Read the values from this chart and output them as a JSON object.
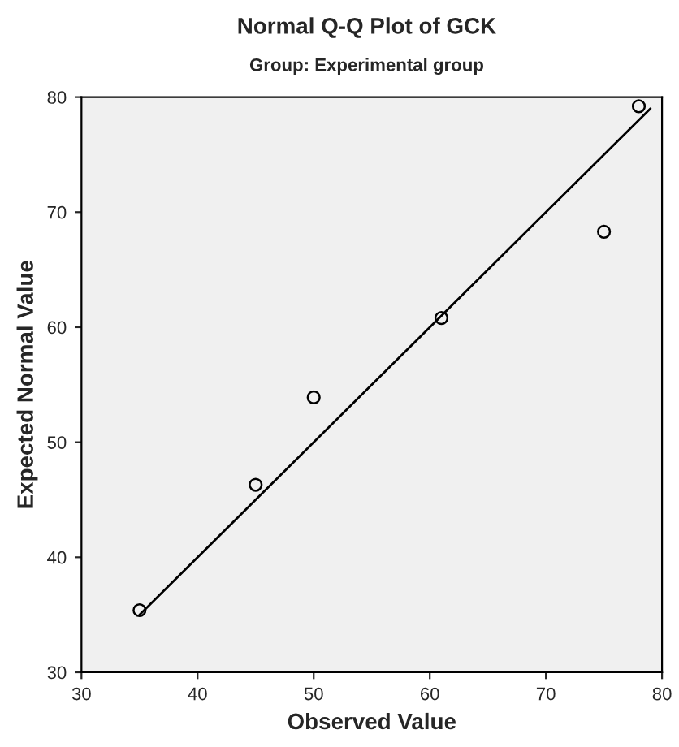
{
  "chart_data": {
    "type": "scatter",
    "title": "Normal Q-Q Plot of GCK",
    "subtitle": "Group: Experimental group",
    "xlabel": "Observed Value",
    "ylabel": "Expected Normal Value",
    "xlim": [
      30,
      80
    ],
    "ylim": [
      30,
      80
    ],
    "xticks": [
      30,
      40,
      50,
      60,
      70,
      80
    ],
    "yticks": [
      30,
      40,
      50,
      60,
      70,
      80
    ],
    "grid": false,
    "series": [
      {
        "marker": "circle",
        "color": "#000000",
        "x": [
          35,
          45,
          50,
          61,
          75,
          78
        ],
        "values": [
          35.4,
          46.3,
          53.9,
          60.8,
          68.3,
          79.2
        ]
      },
      {
        "type": "line",
        "marker": "none",
        "color": "#000000",
        "x": [
          35,
          79
        ],
        "values": [
          35,
          79
        ],
        "line_style": "solid"
      }
    ]
  }
}
